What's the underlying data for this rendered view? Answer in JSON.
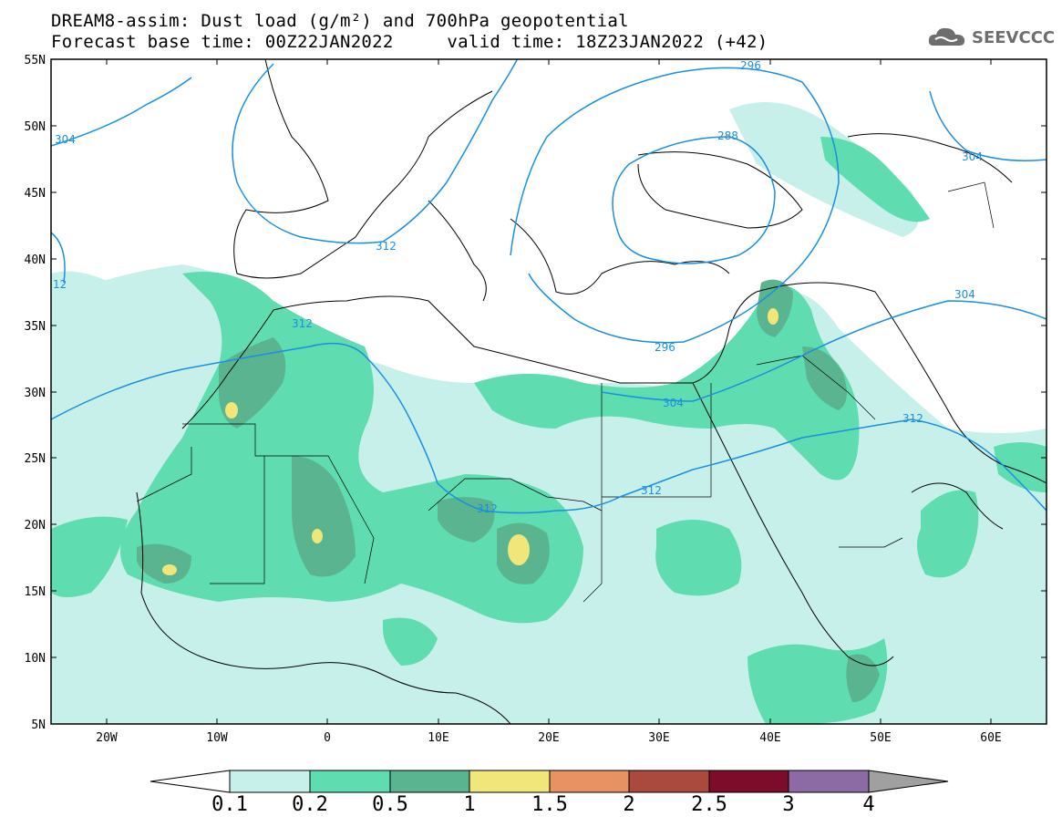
{
  "title_line1": "DREAM8-assim: Dust load (g/m²) and 700hPa geopotential",
  "title_line2_left": "Forecast base time: 00Z22JAN2022",
  "title_line2_right": "valid time: 18Z23JAN2022 (+42)",
  "logo_text": "SEEVCCC",
  "lat_labels": [
    "55N",
    "50N",
    "45N",
    "40N",
    "35N",
    "30N",
    "25N",
    "20N",
    "15N",
    "10N",
    "5N"
  ],
  "lon_labels": [
    "20W",
    "10W",
    "0",
    "10E",
    "20E",
    "30E",
    "40E",
    "50E",
    "60E"
  ],
  "contour_labels": [
    "296",
    "288",
    "304",
    "304",
    "312",
    "312",
    "296",
    "304",
    "304",
    "312",
    "312",
    "312",
    "12"
  ],
  "colorbar": {
    "labels": [
      "0.1",
      "0.2",
      "0.5",
      "1",
      "1.5",
      "2",
      "2.5",
      "3",
      "4"
    ],
    "colors": [
      "#c8f0ea",
      "#5fdcb0",
      "#5ab48f",
      "#f0e67a",
      "#e89264",
      "#aa4a3e",
      "#7c0c2a",
      "#8c6aa4"
    ]
  },
  "colors": {
    "contour": "#1a8fe0",
    "dust_01": "#c8f0ea",
    "dust_02": "#5fdcb0",
    "dust_05": "#5ab48f",
    "dust_1": "#f0e67a"
  }
}
